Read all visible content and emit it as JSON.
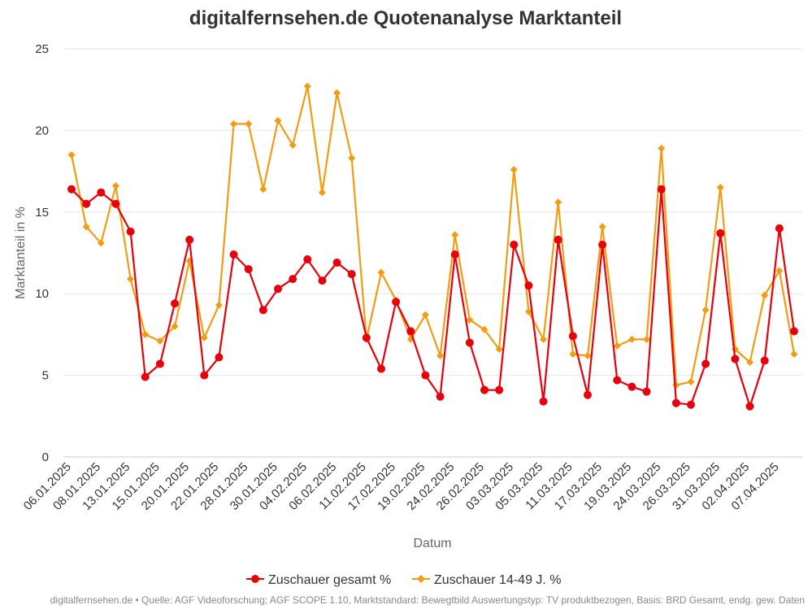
{
  "chart_data": {
    "type": "line",
    "title": "digitalfernsehen.de Quotenanalyse Marktanteil",
    "xlabel": "Datum",
    "ylabel": "Marktanteil in %",
    "ylim": [
      0,
      25
    ],
    "yticks": [
      0,
      5,
      10,
      15,
      20,
      25
    ],
    "grid": true,
    "legend_position": "bottom",
    "x_tick_labels": [
      "06.01.2025",
      "08.01.2025",
      "13.01.2025",
      "15.01.2025",
      "20.01.2025",
      "22.01.2025",
      "28.01.2025",
      "30.01.2025",
      "04.02.2025",
      "06.02.2025",
      "11.02.2025",
      "17.02.2025",
      "19.02.2025",
      "24.02.2025",
      "26.02.2025",
      "03.03.2025",
      "05.03.2025",
      "11.03.2025",
      "17.03.2025",
      "19.03.2025",
      "24.03.2025",
      "26.03.2025",
      "31.03.2025",
      "02.04.2025",
      "07.04.2025"
    ],
    "series": [
      {
        "name": "Zuschauer gesamt %",
        "color": "#e8000b",
        "values": [
          16.4,
          15.5,
          16.2,
          15.5,
          13.8,
          4.9,
          5.7,
          9.4,
          13.3,
          5.0,
          6.1,
          12.4,
          11.5,
          9.0,
          10.3,
          10.9,
          12.1,
          10.8,
          11.9,
          11.2,
          7.3,
          5.4,
          9.5,
          7.7,
          5.0,
          3.7,
          12.4,
          7.0,
          4.1,
          4.1,
          13.0,
          10.5,
          3.4,
          13.3,
          7.4,
          3.8,
          13.0,
          4.7,
          4.3,
          4.0,
          16.4,
          3.3,
          3.2,
          5.7,
          13.7,
          6.0,
          3.1,
          5.9,
          14.0,
          7.7
        ]
      },
      {
        "name": "Zuschauer 14-49 J. %",
        "color": "#f39c12",
        "values": [
          18.5,
          14.1,
          13.1,
          16.6,
          10.9,
          7.5,
          7.1,
          8.0,
          12.0,
          7.3,
          9.3,
          20.4,
          20.4,
          16.4,
          20.6,
          19.1,
          22.7,
          16.2,
          22.3,
          18.3,
          7.2,
          11.3,
          9.6,
          7.2,
          8.7,
          6.2,
          13.6,
          8.4,
          7.8,
          6.6,
          17.6,
          8.9,
          7.2,
          15.6,
          6.3,
          6.2,
          14.1,
          6.8,
          7.2,
          7.2,
          18.9,
          4.4,
          4.6,
          9.0,
          16.5,
          6.6,
          5.8,
          9.9,
          11.4,
          6.3
        ]
      }
    ]
  },
  "footer": {
    "credit": "digitalfernsehen.de • Quelle: AGF Videoforschung; AGF SCOPE 1.10, Marktstandard: Bewegtbild Auswertungstyp: TV produktbezogen, Basis: BRD Gesamt, endg. gew. Daten"
  }
}
